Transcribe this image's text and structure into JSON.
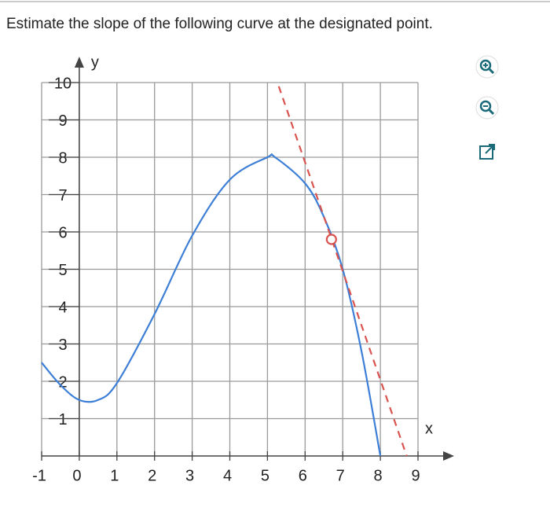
{
  "chart_data": {
    "type": "line",
    "title": "Estimate the slope of the following curve at the designated point.",
    "xlabel": "x",
    "ylabel": "y",
    "xlim": [
      -1,
      9
    ],
    "ylim": [
      0,
      10
    ],
    "xticks": [
      -1,
      0,
      1,
      2,
      3,
      4,
      5,
      6,
      7,
      8,
      9
    ],
    "yticks": [
      1,
      2,
      3,
      4,
      5,
      6,
      7,
      8,
      9,
      10
    ],
    "grid": true,
    "series": [
      {
        "color": "#3d7fd6",
        "style": "solid",
        "x": [
          -1,
          -0.5,
          0,
          0.5,
          1,
          2,
          3,
          4,
          5,
          5.2,
          6,
          6.5,
          7,
          7.5,
          8
        ],
        "values": [
          2.5,
          1.9,
          1.5,
          1.5,
          1.95,
          3.8,
          5.9,
          7.4,
          8.0,
          8.0,
          7.3,
          6.4,
          5.0,
          2.8,
          0
        ]
      },
      {
        "color": "#d9534f",
        "style": "dashed",
        "x": [
          5.3,
          8.7
        ],
        "values": [
          9.9,
          0
        ]
      }
    ],
    "point": {
      "color": "#d9534f",
      "x": 6.7,
      "y": 5.8
    }
  }
}
